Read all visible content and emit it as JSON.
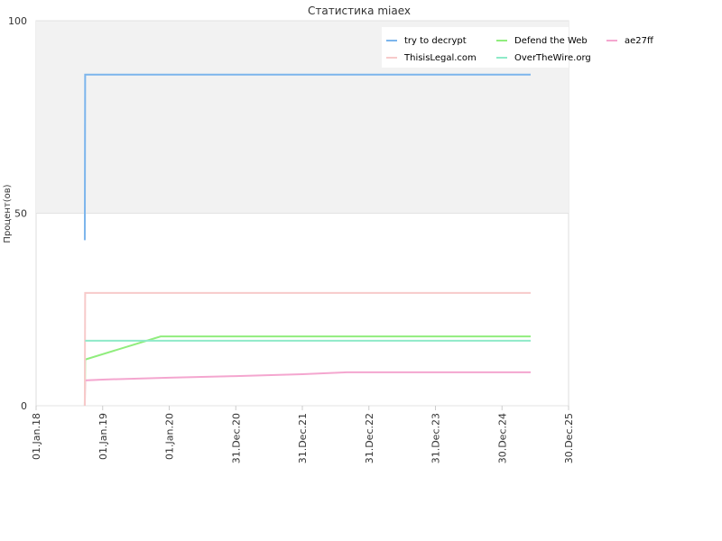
{
  "chart_data": {
    "type": "line",
    "title": "Статистика miaex",
    "y_label": "Процент(ов)",
    "xlim": [
      "2018-01-01",
      "2025-12-30"
    ],
    "xticks": [
      {
        "value": "2018-01-01",
        "label": "01.Jan.18"
      },
      {
        "value": "2019-01-01",
        "label": "01.Jan.19"
      },
      {
        "value": "2020-01-01",
        "label": "01.Jan.20"
      },
      {
        "value": "2020-12-31",
        "label": "31.Dec.20"
      },
      {
        "value": "2021-12-31",
        "label": "31.Dec.21"
      },
      {
        "value": "2022-12-31",
        "label": "31.Dec.22"
      },
      {
        "value": "2023-12-31",
        "label": "31.Dec.23"
      },
      {
        "value": "2024-12-30",
        "label": "30.Dec.24"
      },
      {
        "value": "2025-12-30",
        "label": "30.Dec.25"
      }
    ],
    "ylim": [
      0,
      100
    ],
    "yticks": [
      0,
      50,
      100
    ],
    "grid": true,
    "legend": "top-right",
    "series": [
      {
        "name": "try to decrypt",
        "color": "#7cb5ec",
        "x": [
          "2018-09-25",
          "2018-09-27",
          "2025-06-05"
        ],
        "values": [
          43,
          86,
          86
        ]
      },
      {
        "name": "Defend the Web",
        "color": "#90ed7d",
        "x": [
          "2018-09-25",
          "2018-09-27",
          "2019-11-15",
          "2025-06-05"
        ],
        "values": [
          0,
          12,
          18,
          18
        ]
      },
      {
        "name": "ae27ff",
        "color": "#f4a6cf",
        "x": [
          "2018-09-25",
          "2018-09-27",
          "2019-01-01",
          "2020-01-01",
          "2021-01-01",
          "2022-01-01",
          "2022-09-01",
          "2025-06-05"
        ],
        "values": [
          0,
          6.6,
          6.8,
          7.3,
          7.7,
          8.2,
          8.7,
          8.7
        ]
      },
      {
        "name": "ThisisLegal.com",
        "color": "#f7caca",
        "x": [
          "2018-09-25",
          "2018-09-27",
          "2025-06-05"
        ],
        "values": [
          0,
          29.3,
          29.3
        ]
      },
      {
        "name": "OverTheWire.org",
        "color": "#8eeac8",
        "x": [
          "2018-09-27",
          "2025-06-05"
        ],
        "values": [
          16.9,
          16.9
        ]
      }
    ]
  }
}
